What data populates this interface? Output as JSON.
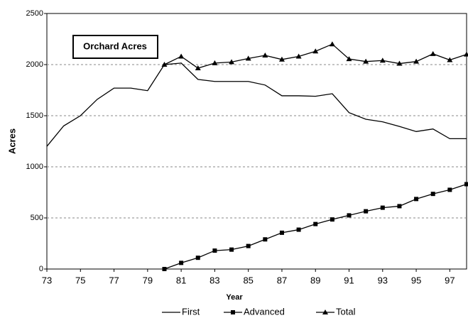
{
  "chart_data": {
    "type": "line",
    "title": "Orchard Acres",
    "x_label": "Year",
    "y_label": "Acres",
    "x": [
      73,
      74,
      75,
      76,
      77,
      78,
      79,
      80,
      81,
      82,
      83,
      84,
      85,
      86,
      87,
      88,
      89,
      90,
      91,
      92,
      93,
      94,
      95,
      96,
      97,
      98
    ],
    "series": [
      {
        "name": "First",
        "color": "#000000",
        "marker": "none",
        "values": [
          1200,
          1400,
          1500,
          1660,
          1770,
          1770,
          1745,
          2000,
          2015,
          1855,
          1835,
          1835,
          1835,
          1800,
          1695,
          1695,
          1690,
          1715,
          1530,
          1465,
          1440,
          1395,
          1345,
          1370,
          1275,
          1275
        ]
      },
      {
        "name": "Advanced",
        "color": "#000000",
        "marker": "square",
        "values": [
          null,
          null,
          null,
          null,
          null,
          null,
          null,
          0,
          60,
          110,
          180,
          190,
          225,
          290,
          355,
          385,
          440,
          485,
          525,
          565,
          600,
          615,
          685,
          735,
          775,
          830
        ]
      },
      {
        "name": "Total",
        "color": "#000000",
        "marker": "triangle",
        "values": [
          null,
          null,
          null,
          null,
          null,
          null,
          null,
          2000,
          2080,
          1965,
          2015,
          2025,
          2060,
          2090,
          2050,
          2080,
          2130,
          2200,
          2055,
          2030,
          2040,
          2010,
          2030,
          2105,
          2045,
          2100
        ]
      }
    ],
    "xlim": [
      73,
      98
    ],
    "xticks": [
      73,
      75,
      77,
      79,
      81,
      83,
      85,
      87,
      89,
      91,
      93,
      95,
      97
    ],
    "ylim": [
      0,
      2500
    ],
    "yticks": [
      0,
      500,
      1000,
      1500,
      2000,
      2500
    ],
    "grid": true,
    "legend": "bottom"
  }
}
